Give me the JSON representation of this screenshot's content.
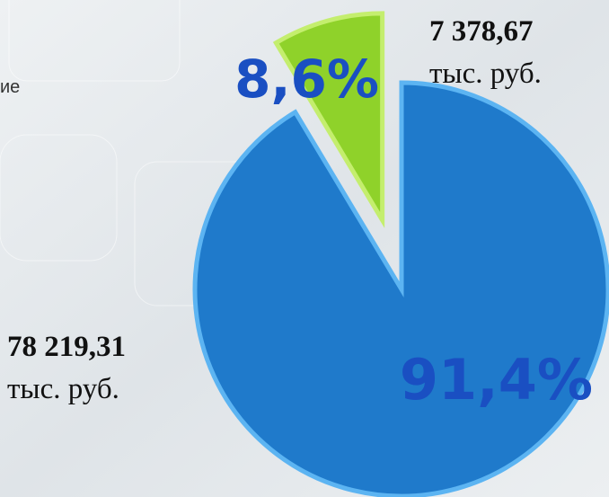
{
  "chart_data": {
    "type": "pie",
    "values": [
      91.4,
      8.6
    ],
    "value_labels": [
      "91,4%",
      "8,6%"
    ],
    "colors": [
      "#1f7acb",
      "#8fd22a"
    ],
    "annotations": [
      {
        "text": "78 219,31",
        "unit": "тыс. руб."
      },
      {
        "text": "7 378,67",
        "unit": "тыс. руб."
      }
    ]
  },
  "background_text": "ие"
}
